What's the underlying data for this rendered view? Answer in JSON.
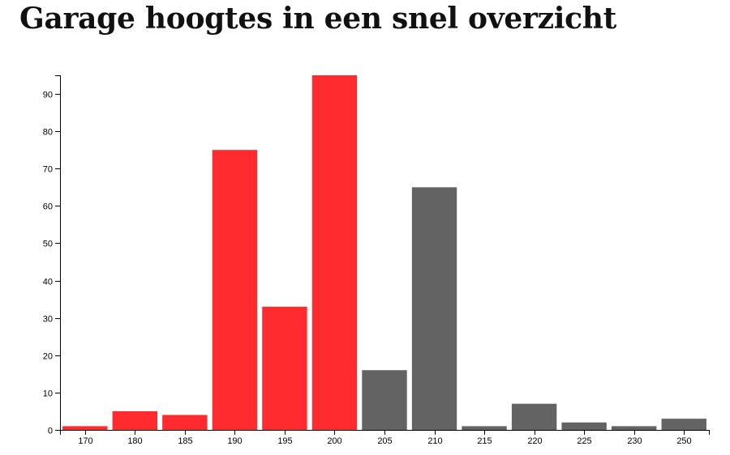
{
  "page": {
    "title": "Garage hoogtes in een snel overzicht"
  },
  "chart_data": {
    "type": "bar",
    "title": "Garage hoogtes in een snel overzicht",
    "xlabel": "",
    "ylabel": "",
    "categories": [
      "170",
      "180",
      "185",
      "190",
      "195",
      "200",
      "205",
      "210",
      "215",
      "220",
      "225",
      "230",
      "250"
    ],
    "values": [
      1,
      5,
      4,
      75,
      33,
      95,
      16,
      65,
      1,
      7,
      2,
      1,
      3
    ],
    "bar_colors": [
      "#ff2b2f",
      "#ff2b2f",
      "#ff2b2f",
      "#ff2b2f",
      "#ff2b2f",
      "#ff2b2f",
      "#636363",
      "#636363",
      "#636363",
      "#636363",
      "#636363",
      "#636363",
      "#636363"
    ],
    "ylim": [
      0,
      95
    ],
    "y_ticks": [
      0,
      10,
      20,
      30,
      40,
      50,
      60,
      70,
      80,
      90
    ],
    "grid": false,
    "legend": "none"
  },
  "colors": {
    "highlight": "#ff2b2f",
    "default": "#636363",
    "axis": "#000000"
  }
}
